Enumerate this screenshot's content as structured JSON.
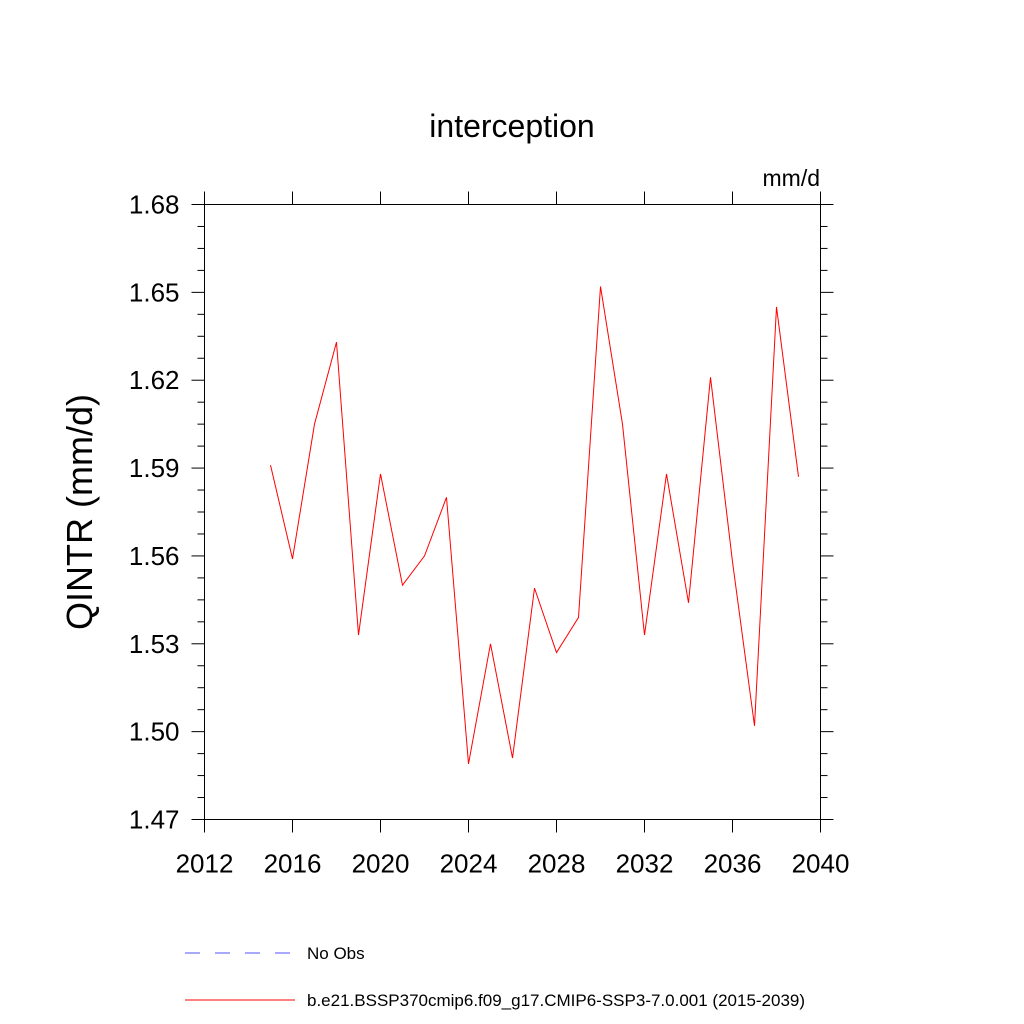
{
  "chart_data": {
    "type": "line",
    "title": "interception",
    "units_label": "mm/d",
    "ylabel": "QINTR  (mm/d)",
    "xlabel": "",
    "xlim": [
      2012,
      2040
    ],
    "ylim": [
      1.47,
      1.68
    ],
    "x_ticks": [
      "2012",
      "2016",
      "2020",
      "2024",
      "2028",
      "2032",
      "2036",
      "2040"
    ],
    "y_ticks": [
      "1.47",
      "1.50",
      "1.53",
      "1.56",
      "1.59",
      "1.62",
      "1.65",
      "1.68"
    ],
    "grid": false,
    "legend_position": "bottom",
    "series": [
      {
        "name": "b.e21.BSSP370cmip6.f09_g17.CMIP6-SSP3-7.0.001 (2015-2039)",
        "color": "#ff0000",
        "dash": "solid",
        "x": [
          2015,
          2016,
          2017,
          2018,
          2019,
          2020,
          2021,
          2022,
          2023,
          2024,
          2025,
          2026,
          2027,
          2028,
          2029,
          2030,
          2031,
          2032,
          2033,
          2034,
          2035,
          2036,
          2037,
          2038,
          2039
        ],
        "y": [
          1.591,
          1.559,
          1.605,
          1.633,
          1.533,
          1.588,
          1.55,
          1.56,
          1.58,
          1.489,
          1.53,
          1.491,
          1.549,
          1.527,
          1.539,
          1.652,
          1.605,
          1.533,
          1.588,
          1.544,
          1.621,
          1.558,
          1.502,
          1.645,
          1.587
        ]
      }
    ],
    "legend": [
      {
        "label": "No Obs",
        "color": "#5050ff",
        "dash": "dashed"
      },
      {
        "label": "b.e21.BSSP370cmip6.f09_g17.CMIP6-SSP3-7.0.001 (2015-2039)",
        "color": "#ff0000",
        "dash": "solid"
      }
    ]
  }
}
